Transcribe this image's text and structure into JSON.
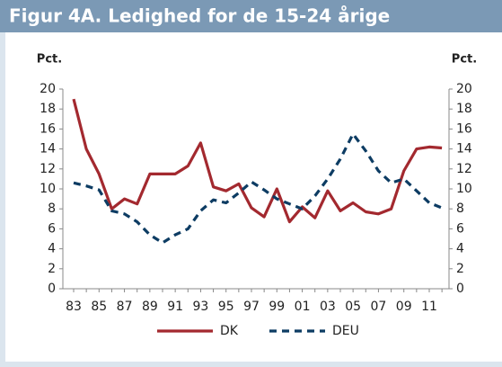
{
  "chart_data": {
    "type": "line",
    "title": "Figur 4A. Ledighed for de 15-24 årige",
    "y_label": "Pct.",
    "y2_label": "Pct.",
    "categories": [
      "83",
      null,
      "85",
      null,
      "87",
      null,
      "89",
      null,
      "91",
      null,
      "93",
      null,
      "95",
      null,
      "97",
      null,
      "99",
      null,
      "01",
      null,
      "03",
      null,
      "05",
      null,
      "07",
      null,
      "09",
      null,
      "11",
      null
    ],
    "series": [
      {
        "name": "DK",
        "color": "#a3292f",
        "dash": false,
        "values": [
          19,
          14,
          11.5,
          8,
          9,
          8.5,
          11.5,
          11.5,
          11.5,
          12.3,
          14.6,
          10.2,
          9.8,
          10.5,
          8.1,
          7.2,
          10,
          6.7,
          8.2,
          7.1,
          9.8,
          7.8,
          8.6,
          7.7,
          7.5,
          8,
          11.8,
          14,
          14.2,
          14.1
        ]
      },
      {
        "name": "DEU",
        "color": "#0d3c63",
        "dash": true,
        "values": [
          10.6,
          10.3,
          9.9,
          7.8,
          7.5,
          6.7,
          5.4,
          4.6,
          5.4,
          6,
          7.8,
          8.9,
          8.6,
          9.6,
          10.7,
          9.9,
          9,
          8.5,
          8,
          9.3,
          11,
          13,
          15.5,
          13.8,
          11.8,
          10.6,
          11,
          9.8,
          8.6,
          8.1
        ]
      }
    ],
    "ylim": [
      0,
      20
    ],
    "yticks": [
      0,
      2,
      4,
      6,
      8,
      10,
      12,
      14,
      16,
      18,
      20
    ],
    "y2lim": [
      0,
      20
    ],
    "y2ticks": [
      0,
      2,
      4,
      6,
      8,
      10,
      12,
      14,
      16,
      18,
      20
    ],
    "grid": false,
    "legend": "bottom"
  }
}
